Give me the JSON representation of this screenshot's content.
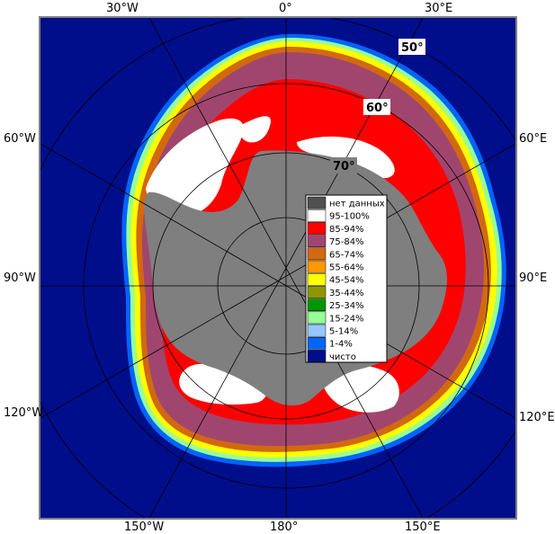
{
  "map": {
    "meridian_labels": {
      "top": [
        "30°W",
        "0°",
        "30°E"
      ],
      "left": [
        "60°W",
        "90°W",
        "120°W"
      ],
      "right": [
        "60°E",
        "90°E",
        "120°E"
      ],
      "bottom": [
        "150°W",
        "180°",
        "150°E"
      ]
    },
    "latitude_labels": [
      "50°",
      "60°",
      "70°"
    ],
    "colors": {
      "ocean": "#000e8c",
      "land": "#7f7f7f",
      "frame": "#7f7f7f",
      "ice_95_100": "#ffffff",
      "ice_85_94": "#ff0000",
      "ice_75_84": "#a0466e",
      "ice_65_74": "#d2690f",
      "ice_55_64": "#ff9900",
      "ice_45_54": "#ffff00",
      "ice_35_44": "#8c9600",
      "ice_25_34": "#009600",
      "ice_15_24": "#96ff96",
      "ice_5_14": "#96c8ff",
      "ice_1_4": "#0064ff"
    }
  },
  "legend": {
    "items": [
      {
        "label": "нет данных",
        "color": "#505050"
      },
      {
        "label": "95-100%",
        "color": "#ffffff"
      },
      {
        "label": "85-94%",
        "color": "#ff0000"
      },
      {
        "label": "75-84%",
        "color": "#a0466e"
      },
      {
        "label": "65-74%",
        "color": "#d2690f"
      },
      {
        "label": "55-64%",
        "color": "#ff9900"
      },
      {
        "label": "45-54%",
        "color": "#ffff00"
      },
      {
        "label": "35-44%",
        "color": "#8c9600"
      },
      {
        "label": "25-34%",
        "color": "#009600"
      },
      {
        "label": "15-24%",
        "color": "#96ff96"
      },
      {
        "label": "5-14%",
        "color": "#96c8ff"
      },
      {
        "label": "1-4%",
        "color": "#0064ff"
      },
      {
        "label": "чисто",
        "color": "#000e8c"
      }
    ]
  }
}
